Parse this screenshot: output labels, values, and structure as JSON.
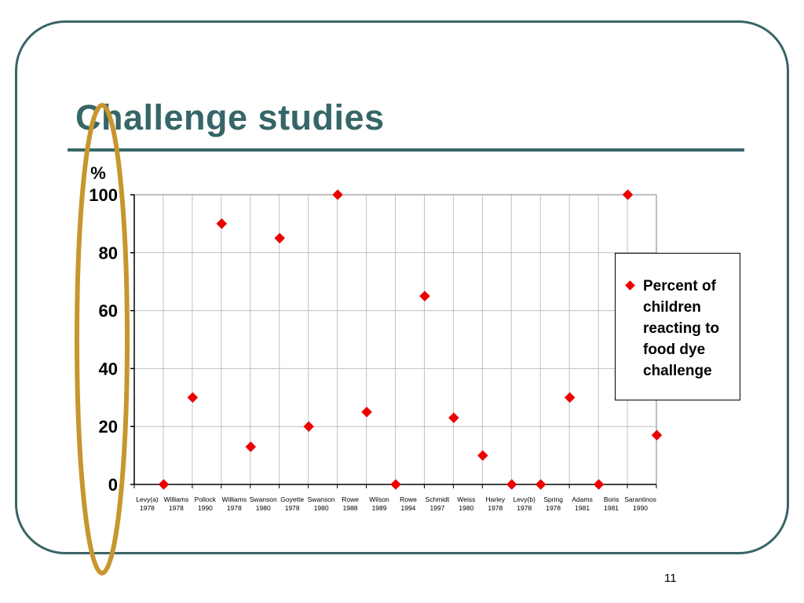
{
  "slide": {
    "title": "Challenge studies",
    "page_number": "11"
  },
  "colors": {
    "frame": "#3a6466",
    "title": "#366668",
    "marker": "#ee0000",
    "highlight_oval": "#c8962e",
    "gridline": "#c0c0c0"
  },
  "chart_data": {
    "type": "scatter",
    "title": "",
    "ylabel": "%",
    "xlabel": "",
    "ylim": [
      0,
      100
    ],
    "yticks": [
      0,
      20,
      40,
      60,
      80,
      100
    ],
    "grid": true,
    "legend_position": "right",
    "categories": [
      [
        "Levy(a)",
        "1978"
      ],
      [
        "Williams",
        "1978"
      ],
      [
        "Pollock",
        "1990"
      ],
      [
        "Williams",
        "1978"
      ],
      [
        "Swanson",
        "1980"
      ],
      [
        "Goyette",
        "1978"
      ],
      [
        "Swanson",
        "1980"
      ],
      [
        "Rowe",
        "1988"
      ],
      [
        "Wilson",
        "1989"
      ],
      [
        "Rowe",
        "1994"
      ],
      [
        "Schmidt",
        "1997"
      ],
      [
        "Weiss",
        "1980"
      ],
      [
        "Harley",
        "1978"
      ],
      [
        "Levy(b)",
        "1978"
      ],
      [
        "Spring",
        "1978"
      ],
      [
        "Adams",
        "1981"
      ],
      [
        "Boris",
        "1981"
      ],
      [
        "Sarantinos",
        "1990"
      ]
    ],
    "series": [
      {
        "name": "Percent of children reacting to food dye challenge",
        "values": [
          0,
          30,
          90,
          13,
          85,
          20,
          100,
          25,
          0,
          65,
          23,
          10,
          0,
          0,
          30,
          0,
          100,
          17
        ]
      }
    ],
    "annotations": [
      "highlight oval around y-axis"
    ]
  }
}
